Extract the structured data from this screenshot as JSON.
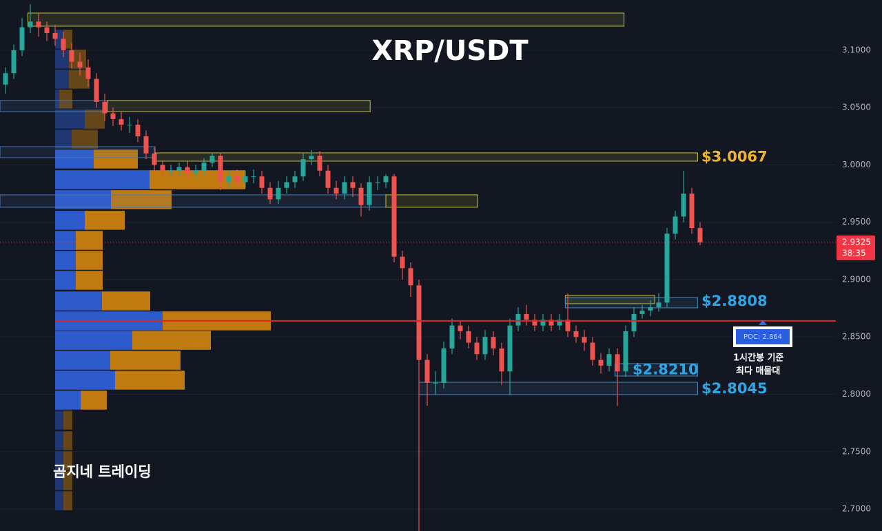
{
  "chart_data": {
    "type": "candlestick",
    "title": "XRP/USDT",
    "watermark": "곰지네 트레이딩",
    "ylim": [
      2.6808,
      3.1438
    ],
    "yticks": [
      {
        "value": 3.1,
        "label": "3.1000"
      },
      {
        "value": 3.05,
        "label": "3.0500"
      },
      {
        "value": 3.0,
        "label": "3.0000"
      },
      {
        "value": 2.95,
        "label": "2.9500"
      },
      {
        "value": 2.9,
        "label": "2.9000"
      },
      {
        "value": 2.85,
        "label": "2.8500"
      },
      {
        "value": 2.8,
        "label": "2.8000"
      },
      {
        "value": 2.75,
        "label": "2.7500"
      },
      {
        "value": 2.7,
        "label": "2.7000"
      }
    ],
    "grid": true,
    "up_color": "#26a69a",
    "down_color": "#ef5350",
    "open": [
      3.07,
      3.08,
      3.1,
      3.12,
      3.125,
      3.12,
      3.115,
      3.11,
      3.1,
      3.09,
      3.085,
      3.075,
      3.055,
      3.045,
      3.04,
      3.035,
      3.035,
      3.025,
      3.01,
      3.0,
      2.995,
      2.995,
      2.998,
      2.993,
      2.995,
      3.002,
      3.008,
      2.985,
      2.99,
      2.985,
      2.99,
      2.99,
      2.98,
      2.97,
      2.98,
      2.985,
      2.99,
      3.005,
      3.008,
      2.995,
      2.98,
      2.975,
      2.985,
      2.98,
      2.965,
      2.985,
      2.985,
      2.99,
      2.92,
      2.91,
      2.895,
      2.83,
      2.81,
      2.81,
      2.84,
      2.86,
      2.855,
      2.845,
      2.835,
      2.85,
      2.84,
      2.82,
      2.86,
      2.87,
      2.865,
      2.86,
      2.865,
      2.86,
      2.865,
      2.855,
      2.85,
      2.845,
      2.83,
      2.825,
      2.835,
      2.82,
      2.855,
      2.87,
      2.873,
      2.876,
      2.88,
      2.94,
      2.955,
      2.975,
      2.945
    ],
    "high": [
      3.085,
      3.105,
      3.128,
      3.14,
      3.132,
      3.125,
      3.122,
      3.116,
      3.106,
      3.098,
      3.092,
      3.08,
      3.062,
      3.05,
      3.046,
      3.042,
      3.04,
      3.03,
      3.015,
      3.004,
      3.0,
      3.002,
      3.003,
      3.0,
      3.006,
      3.01,
      3.01,
      2.995,
      2.996,
      2.995,
      2.996,
      2.995,
      2.985,
      2.986,
      2.99,
      2.995,
      3.01,
      3.013,
      3.012,
      3.0,
      2.986,
      2.99,
      2.99,
      2.984,
      2.99,
      2.99,
      2.992,
      2.992,
      2.925,
      2.915,
      2.9,
      2.835,
      2.82,
      2.846,
      2.866,
      2.864,
      2.86,
      2.85,
      2.856,
      2.855,
      2.845,
      2.866,
      2.876,
      2.878,
      2.87,
      2.87,
      2.87,
      2.87,
      2.888,
      2.86,
      2.856,
      2.85,
      2.836,
      2.84,
      2.84,
      2.86,
      2.876,
      2.878,
      2.882,
      2.888,
      2.945,
      2.96,
      2.995,
      2.98,
      2.95
    ],
    "low": [
      3.062,
      3.075,
      3.095,
      3.115,
      3.112,
      3.108,
      3.104,
      3.094,
      3.084,
      3.078,
      3.068,
      3.05,
      3.038,
      3.034,
      3.03,
      3.028,
      3.02,
      3.005,
      2.995,
      2.99,
      2.99,
      2.99,
      2.988,
      2.988,
      2.99,
      2.998,
      2.978,
      2.98,
      2.98,
      2.98,
      2.984,
      2.975,
      2.966,
      2.966,
      2.975,
      2.98,
      2.986,
      3.0,
      2.99,
      2.975,
      2.97,
      2.97,
      2.972,
      2.955,
      2.96,
      2.978,
      2.98,
      2.915,
      2.9,
      2.885,
      2.68,
      2.79,
      2.8,
      2.805,
      2.835,
      2.848,
      2.84,
      2.83,
      2.83,
      2.834,
      2.808,
      2.8,
      2.855,
      2.86,
      2.855,
      2.855,
      2.855,
      2.856,
      2.85,
      2.845,
      2.838,
      2.825,
      2.818,
      2.82,
      2.79,
      2.815,
      2.85,
      2.866,
      2.868,
      2.872,
      2.876,
      2.935,
      2.95,
      2.94,
      2.93
    ],
    "close": [
      3.08,
      3.1,
      3.12,
      3.125,
      3.12,
      3.115,
      3.11,
      3.1,
      3.09,
      3.085,
      3.075,
      3.055,
      3.045,
      3.04,
      3.035,
      3.035,
      3.025,
      3.01,
      3.0,
      2.995,
      2.995,
      2.998,
      2.993,
      2.995,
      3.002,
      3.008,
      2.985,
      2.99,
      2.985,
      2.99,
      2.99,
      2.98,
      2.97,
      2.98,
      2.985,
      2.99,
      3.005,
      3.008,
      2.995,
      2.98,
      2.975,
      2.985,
      2.98,
      2.965,
      2.985,
      2.985,
      2.99,
      2.92,
      2.91,
      2.895,
      2.83,
      2.81,
      2.81,
      2.84,
      2.86,
      2.855,
      2.845,
      2.835,
      2.85,
      2.84,
      2.82,
      2.86,
      2.87,
      2.865,
      2.86,
      2.865,
      2.86,
      2.865,
      2.855,
      2.85,
      2.845,
      2.83,
      2.825,
      2.835,
      2.82,
      2.855,
      2.87,
      2.873,
      2.876,
      2.88,
      2.94,
      2.955,
      2.975,
      2.945,
      2.9325
    ],
    "volume_profile": {
      "buy_color": "#2f5fd6",
      "sell_color": "#c9800f",
      "prices": [
        3.1096,
        3.0922,
        3.0748,
        3.0574,
        3.0399,
        3.0225,
        3.0051,
        2.9871,
        2.9697,
        2.9517,
        2.9342,
        2.9168,
        2.8994,
        2.8814,
        2.864,
        2.8471,
        2.8297,
        2.8123,
        2.7949,
        2.7775,
        2.7595,
        2.742,
        2.7246,
        2.7072
      ],
      "buy": [
        12,
        20,
        20,
        6,
        43,
        24,
        56,
        137,
        81,
        43,
        30,
        30,
        30,
        68,
        156,
        112,
        80,
        87,
        37,
        12,
        12,
        12,
        12,
        12
      ],
      "sell": [
        13,
        25,
        30,
        19,
        29,
        38,
        64,
        139,
        88,
        58,
        39,
        39,
        39,
        70,
        157,
        114,
        102,
        101,
        38,
        13,
        13,
        13,
        13,
        13
      ]
    },
    "zones": [
      {
        "from": 3.121,
        "to": 3.1324,
        "start": 2.7,
        "end": 74.8,
        "color": "#c9c23a"
      },
      {
        "from": 3.0465,
        "to": 3.0562,
        "start": -0.7,
        "end": 12.3,
        "color": "#4a7ab5"
      },
      {
        "from": 3.0465,
        "to": 3.0562,
        "start": 12.3,
        "end": 44.1,
        "color": "#c9c23a"
      },
      {
        "from": 3.0063,
        "to": 3.0159,
        "start": -0.7,
        "end": 18.1,
        "color": "#4a7ab5"
      },
      {
        "from": 3.0033,
        "to": 3.0105,
        "start": 18.1,
        "end": 83.7,
        "color": "#c9c23a"
      },
      {
        "from": 2.9631,
        "to": 2.9739,
        "start": -0.7,
        "end": 46.0,
        "color": "#4a7ab5"
      },
      {
        "from": 2.9631,
        "to": 2.9739,
        "start": 46.0,
        "end": 57.1,
        "color": "#c9c23a"
      },
      {
        "from": 2.879,
        "to": 2.8862,
        "start": 67.7,
        "end": 78.5,
        "color": "#c9c23a"
      },
      {
        "from": 2.8754,
        "to": 2.8844,
        "start": 67.7,
        "end": 83.7,
        "color": "#4a8ac4"
      },
      {
        "from": 2.8159,
        "to": 2.8267,
        "start": 73.7,
        "end": 83.7,
        "color": "#4a8ac4"
      },
      {
        "from": 2.7997,
        "to": 2.8105,
        "start": 50.0,
        "end": 83.7,
        "color": "#4a8ac4"
      }
    ],
    "price_labels": [
      {
        "value": 3.0067,
        "label": "$3.0067",
        "color": "#f0b429"
      },
      {
        "value": 2.8808,
        "label": "$2.8808",
        "color": "#2ea6e6"
      },
      {
        "value": 2.821,
        "label": "$2.8210",
        "color": "#2ea6e6"
      },
      {
        "value": 2.8045,
        "label": "$2.8045",
        "color": "#2ea6e6"
      }
    ],
    "poc": {
      "value": 2.864,
      "label": "POC: 2.864",
      "color": "#e02424"
    },
    "annotation": [
      "1시간봉 기준",
      "최다 매물대"
    ],
    "current_price": 2.9325,
    "countdown": "38:35"
  }
}
